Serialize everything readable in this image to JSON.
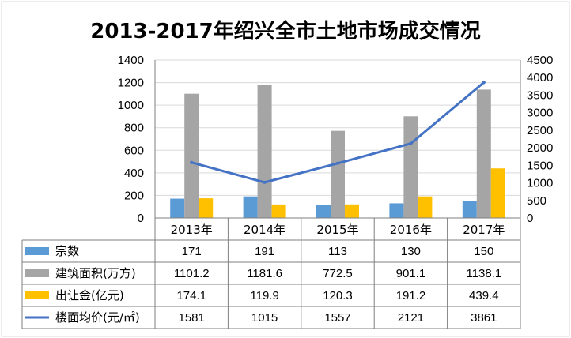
{
  "chart_data": {
    "type": "bar",
    "title": "2013-2017年绍兴全市土地市场成交情况",
    "categories": [
      "2013年",
      "2014年",
      "2015年",
      "2016年",
      "2017年"
    ],
    "y_left": {
      "lim": [
        0,
        1400
      ],
      "ticks": [
        0,
        200,
        400,
        600,
        800,
        1000,
        1200,
        1400
      ]
    },
    "y_right": {
      "lim": [
        0,
        4500
      ],
      "ticks": [
        0,
        500,
        1000,
        1500,
        2000,
        2500,
        3000,
        3500,
        4000,
        4500
      ]
    },
    "grid": true,
    "legend": "data-table",
    "series": [
      {
        "name": "宗数",
        "type": "bar",
        "axis": "left",
        "color": "#5b9bd5",
        "values": [
          171,
          191,
          113,
          130,
          150
        ],
        "labels": [
          "171",
          "191",
          "113",
          "130",
          "150"
        ]
      },
      {
        "name": "建筑面积(万方)",
        "type": "bar",
        "axis": "left",
        "color": "#a5a5a5",
        "values": [
          1101.2,
          1181.6,
          772.5,
          901.1,
          1138.1
        ],
        "labels": [
          "1101.2",
          "1181.6",
          "772.5",
          "901.1",
          "1138.1"
        ]
      },
      {
        "name": "出让金(亿元)",
        "type": "bar",
        "axis": "left",
        "color": "#ffc000",
        "values": [
          174.1,
          119.9,
          120.3,
          191.2,
          439.4
        ],
        "labels": [
          "174.1",
          "119.9",
          "120.3",
          "191.2",
          "439.4"
        ]
      },
      {
        "name": "楼面均价(元/㎡)",
        "type": "line",
        "axis": "right",
        "color": "#4472c4",
        "values": [
          1581,
          1015,
          1557,
          2121,
          3861
        ],
        "labels": [
          "1581",
          "1015",
          "1557",
          "2121",
          "3861"
        ]
      }
    ]
  }
}
